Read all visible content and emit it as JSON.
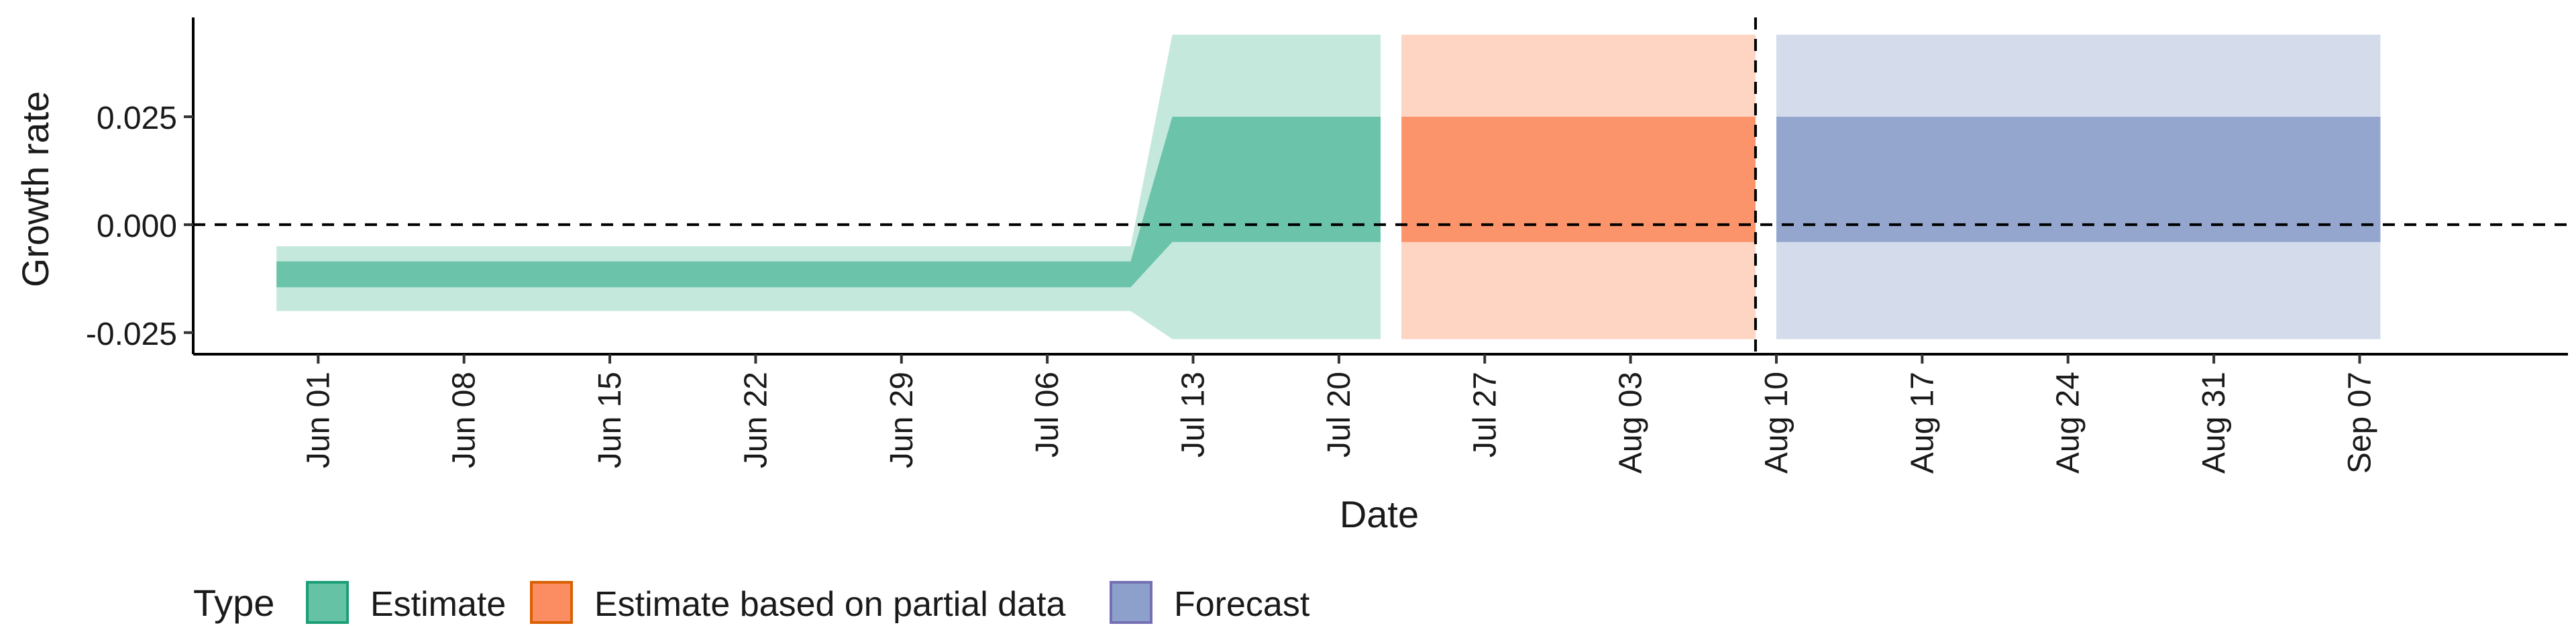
{
  "chart_data": {
    "type": "area",
    "xlabel": "Date",
    "ylabel": "Growth rate",
    "x_tick_labels": [
      "Jun 01",
      "Jun 08",
      "Jun 15",
      "Jun 22",
      "Jun 29",
      "Jul 06",
      "Jul 13",
      "Jul 20",
      "Jul 27",
      "Aug 03",
      "Aug 10",
      "Aug 17",
      "Aug 24",
      "Aug 31",
      "Sep 07"
    ],
    "x_tick_dates": [
      "2020-06-01",
      "2020-06-08",
      "2020-06-15",
      "2020-06-22",
      "2020-06-29",
      "2020-07-06",
      "2020-07-13",
      "2020-07-20",
      "2020-07-27",
      "2020-08-03",
      "2020-08-10",
      "2020-08-17",
      "2020-08-24",
      "2020-08-31",
      "2020-09-07"
    ],
    "xlim": [
      "2020-05-26",
      "2020-09-17"
    ],
    "y_ticks": [
      -0.025,
      0.0,
      0.025
    ],
    "y_tick_labels": [
      "-0.025",
      "0.000",
      "0.025"
    ],
    "ylim": [
      -0.03,
      0.048
    ],
    "hline": 0.0,
    "vline": "2020-08-09",
    "legend": {
      "title": "Type",
      "position": "bottom",
      "entries": [
        {
          "label": "Estimate",
          "color": "#66c2a5",
          "stroke": "#1b9e77"
        },
        {
          "label": "Estimate based on partial data",
          "color": "#fc8d62",
          "stroke": "#d95f02"
        },
        {
          "label": "Forecast",
          "color": "#8da0cb",
          "stroke": "#7570b3"
        }
      ]
    },
    "series": [
      {
        "name": "Estimate",
        "color": "#66c2a5",
        "inner_alpha": 0.95,
        "outer_alpha": 0.38,
        "points": [
          {
            "date": "2020-05-30",
            "lower90": -0.02,
            "lower50": -0.0145,
            "upper50": -0.0085,
            "upper90": -0.005
          },
          {
            "date": "2020-07-10",
            "lower90": -0.02,
            "lower50": -0.0145,
            "upper50": -0.0085,
            "upper90": -0.005
          },
          {
            "date": "2020-07-12",
            "lower90": -0.0265,
            "lower50": -0.004,
            "upper50": 0.025,
            "upper90": 0.044
          },
          {
            "date": "2020-07-22",
            "lower90": -0.0265,
            "lower50": -0.004,
            "upper50": 0.025,
            "upper90": 0.044
          }
        ]
      },
      {
        "name": "Estimate based on partial data",
        "color": "#fc8d62",
        "inner_alpha": 0.9,
        "outer_alpha": 0.38,
        "points": [
          {
            "date": "2020-07-23",
            "lower90": -0.0265,
            "lower50": -0.004,
            "upper50": 0.025,
            "upper90": 0.044
          },
          {
            "date": "2020-08-09",
            "lower90": -0.0265,
            "lower50": -0.004,
            "upper50": 0.025,
            "upper90": 0.044
          }
        ]
      },
      {
        "name": "Forecast",
        "color": "#8da0cb",
        "inner_alpha": 0.9,
        "outer_alpha": 0.38,
        "points": [
          {
            "date": "2020-08-10",
            "lower90": -0.0265,
            "lower50": -0.004,
            "upper50": 0.025,
            "upper90": 0.044
          },
          {
            "date": "2020-09-08",
            "lower90": -0.0265,
            "lower50": -0.004,
            "upper50": 0.025,
            "upper90": 0.044
          }
        ]
      }
    ]
  }
}
